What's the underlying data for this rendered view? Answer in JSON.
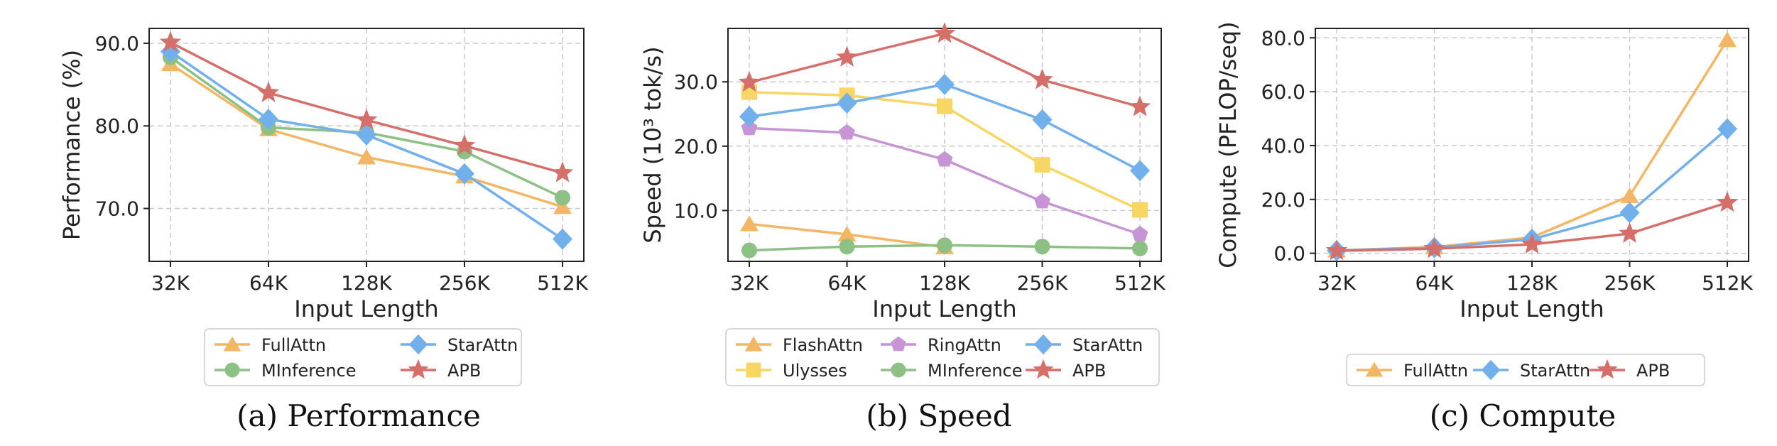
{
  "chart_data": [
    {
      "type": "line",
      "caption": "(a) Performance",
      "xlabel": "Input Length",
      "ylabel": "Performance (%)",
      "categories": [
        "32K",
        "64K",
        "128K",
        "256K",
        "512K"
      ],
      "ylim": [
        63.6,
        91.8
      ],
      "yticks": [
        70,
        80,
        90
      ],
      "ytick_labels": [
        "70.0",
        "80.0",
        "90.0"
      ],
      "grid": true,
      "legend": "bottom",
      "series": [
        {
          "name": "FullAttn",
          "marker": "triangle",
          "color": "#F3B664",
          "values": [
            87.5,
            79.6,
            76.2,
            73.9,
            70.2
          ]
        },
        {
          "name": "MInference",
          "marker": "circle",
          "color": "#8CC084",
          "values": [
            88.3,
            79.8,
            79.2,
            76.9,
            71.3
          ]
        },
        {
          "name": "StarAttn",
          "marker": "diamond",
          "color": "#72B0EB",
          "values": [
            89.0,
            80.8,
            78.9,
            74.2,
            66.3
          ]
        },
        {
          "name": "APB",
          "marker": "star",
          "color": "#D46F6A",
          "values": [
            90.1,
            84.0,
            80.7,
            77.6,
            74.3
          ]
        }
      ]
    },
    {
      "type": "line",
      "caption": "(b) Speed",
      "xlabel": "Input Length",
      "ylabel": "Speed (10³ tok/s)",
      "categories": [
        "32K",
        "64K",
        "128K",
        "256K",
        "512K"
      ],
      "ylim": [
        2.1,
        38.3
      ],
      "yticks": [
        10,
        20,
        30
      ],
      "ytick_labels": [
        "10.0",
        "20.0",
        "30.0"
      ],
      "grid": true,
      "legend": "bottom",
      "series": [
        {
          "name": "FlashAttn",
          "marker": "triangle",
          "color": "#F3B664",
          "values": [
            7.9,
            6.3,
            4.3,
            null,
            null
          ]
        },
        {
          "name": "Ulysses",
          "marker": "square",
          "color": "#F8D664",
          "values": [
            28.4,
            27.9,
            26.2,
            17.1,
            10.1
          ]
        },
        {
          "name": "RingAttn",
          "marker": "pentagon",
          "color": "#C794D5",
          "values": [
            22.8,
            22.1,
            17.9,
            11.4,
            6.3
          ]
        },
        {
          "name": "MInference",
          "marker": "circle",
          "color": "#8CC084",
          "values": [
            3.8,
            4.4,
            4.6,
            4.4,
            4.1
          ]
        },
        {
          "name": "StarAttn",
          "marker": "diamond",
          "color": "#72B0EB",
          "values": [
            24.6,
            26.7,
            29.6,
            24.1,
            16.2
          ]
        },
        {
          "name": "APB",
          "marker": "star",
          "color": "#D46F6A",
          "values": [
            29.9,
            33.8,
            37.5,
            30.3,
            26.1
          ]
        }
      ]
    },
    {
      "type": "line",
      "caption": "(c) Compute",
      "xlabel": "Input Length",
      "ylabel": "Compute (PFLOP/seq)",
      "categories": [
        "32K",
        "64K",
        "128K",
        "256K",
        "512K"
      ],
      "ylim": [
        -3.0,
        83.5
      ],
      "yticks": [
        0,
        20,
        40,
        60,
        80
      ],
      "ytick_labels": [
        "0.0",
        "20.0",
        "40.0",
        "60.0",
        "80.0"
      ],
      "grid": true,
      "legend": "bottom",
      "series": [
        {
          "name": "FullAttn",
          "marker": "triangle",
          "color": "#F3B664",
          "values": [
            1.1,
            2.3,
            5.9,
            21.3,
            79.2
          ]
        },
        {
          "name": "StarAttn",
          "marker": "diamond",
          "color": "#72B0EB",
          "values": [
            1.0,
            2.1,
            5.2,
            15.1,
            46.2
          ]
        },
        {
          "name": "APB",
          "marker": "star",
          "color": "#D46F6A",
          "values": [
            0.9,
            1.7,
            3.3,
            7.3,
            18.8
          ]
        }
      ]
    }
  ]
}
